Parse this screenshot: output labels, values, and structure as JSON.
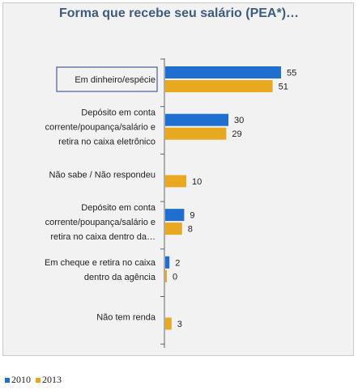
{
  "chart_data": {
    "type": "bar",
    "orientation": "horizontal",
    "title": "Forma que recebe seu salário (PEA*)…",
    "categories": [
      "Em dinheiro/espécie",
      "Depósito em conta corrente/poupança/salário e retira no caixa eletrônico",
      "Não sabe / Não respondeu",
      "Depósito em conta corrente/poupança/salário e retira no caixa dentro da…",
      "Em cheque e retira no caixa dentro da agência",
      "Não tem renda"
    ],
    "category_lines": [
      [
        "Em dinheiro/espécie"
      ],
      [
        "Depósito em conta",
        "corrente/poupança/salário e",
        "retira no caixa eletrônico"
      ],
      [
        "Não sabe / Não respondeu"
      ],
      [
        "Depósito em conta",
        "corrente/poupança/salário e",
        "retira no caixa dentro da…"
      ],
      [
        "Em cheque e retira no caixa",
        "dentro da agência"
      ],
      [
        "Não tem renda"
      ]
    ],
    "series": [
      {
        "name": "2010",
        "color": "#1f6fd0",
        "values": [
          55,
          30,
          null,
          9,
          2,
          null
        ]
      },
      {
        "name": "2013",
        "color": "#e8a920",
        "values": [
          51,
          29,
          10,
          8,
          0,
          3
        ]
      }
    ],
    "xlim": [
      0,
      60
    ],
    "highlighted_category": "Em dinheiro/espécie",
    "legend_position": "bottom-left",
    "grid": false
  }
}
